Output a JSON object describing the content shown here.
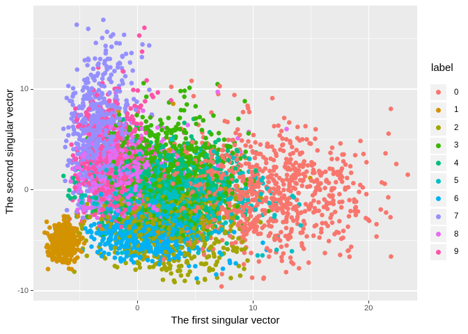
{
  "figure": {
    "background": "#FFFFFF",
    "panel_background": "#EBEBEB",
    "grid_major_color": "#FFFFFF",
    "grid_minor_color": "#FFFFFF",
    "tick_mark_color": "#333333",
    "tick_label_color": "#4D4D4D"
  },
  "legend": {
    "title": "label",
    "position": "right",
    "key_fill": "#F2F2F2",
    "items": [
      {
        "label": "0",
        "color": "#F8766D"
      },
      {
        "label": "1",
        "color": "#D39200"
      },
      {
        "label": "2",
        "color": "#A3A500"
      },
      {
        "label": "3",
        "color": "#39B600"
      },
      {
        "label": "4",
        "color": "#00BF7D"
      },
      {
        "label": "5",
        "color": "#00BFC4"
      },
      {
        "label": "6",
        "color": "#00B0F6"
      },
      {
        "label": "7",
        "color": "#9590FF"
      },
      {
        "label": "8",
        "color": "#E76BF3"
      },
      {
        "label": "9",
        "color": "#FF52A8"
      }
    ]
  },
  "chart_data": {
    "type": "scatter",
    "title": "",
    "xlabel": "The first singular vector",
    "ylabel": "The second singular vector",
    "xlim": [
      -9.0,
      24.2
    ],
    "ylim": [
      -10.97,
      18.28
    ],
    "grid": true,
    "legend_title": "label",
    "legend_position": "right",
    "point_radius_px": 3.3,
    "seed": 1337,
    "x_ticks": {
      "majors": [
        {
          "v": 0,
          "label": "0"
        },
        {
          "v": 10,
          "label": "10"
        },
        {
          "v": 20,
          "label": "20"
        }
      ],
      "minors": [
        -5,
        5,
        15
      ]
    },
    "y_ticks": {
      "majors": [
        {
          "v": 10,
          "label": "10"
        },
        {
          "v": 0,
          "label": "0"
        },
        {
          "v": -10,
          "label": "-10"
        }
      ],
      "minors": [
        15,
        5,
        -5
      ]
    },
    "series": [
      {
        "name": "0",
        "color": "#F8766D",
        "clusters": [
          {
            "n": 850,
            "cx": 10.8,
            "cy": -0.4,
            "sx": 4.6,
            "sy": 2.9,
            "xmin": -1.5,
            "xmax": 23.6,
            "ymin": -9.0,
            "ymax": 9.5
          },
          {
            "n": 12,
            "cx": 8.0,
            "cy": 9.5,
            "sx": 3.5,
            "sy": 1.6,
            "ymax": 12.6
          },
          {
            "n": 6,
            "cx": 12.0,
            "cy": -8.2,
            "sx": 2.4,
            "sy": 0.9,
            "ymin": -10.0
          }
        ]
      },
      {
        "name": "1",
        "color": "#D39200",
        "clusters": [
          {
            "n": 380,
            "cx": -6.3,
            "cy": -5.1,
            "sx": 0.7,
            "sy": 1.05,
            "xmin": -8.3,
            "xmax": -4.2,
            "ymin": -7.9,
            "ymax": -2.6
          },
          {
            "n": 25,
            "cx": 1.5,
            "cy": 0.0,
            "sx": 3.5,
            "sy": 3.5
          }
        ]
      },
      {
        "name": "2",
        "color": "#A3A500",
        "clusters": [
          {
            "n": 600,
            "cx": 2.3,
            "cy": -3.6,
            "sx": 3.3,
            "sy": 2.0,
            "xmin": -5.5,
            "xmax": 12.0,
            "ymin": -8.2,
            "ymax": 1.5
          },
          {
            "n": 30,
            "cx": 4.0,
            "cy": -8.0,
            "sx": 2.5,
            "sy": 1.0,
            "ymin": -9.9
          }
        ]
      },
      {
        "name": "3",
        "color": "#39B600",
        "clusters": [
          {
            "n": 750,
            "cx": 2.6,
            "cy": 1.8,
            "sx": 3.0,
            "sy": 2.9,
            "xmin": -4.5,
            "xmax": 14.0,
            "ymin": -5.0,
            "ymax": 12.5
          }
        ]
      },
      {
        "name": "4",
        "color": "#00BF7D",
        "clusters": [
          {
            "n": 580,
            "cx": 2.2,
            "cy": 0.6,
            "sx": 3.3,
            "sy": 2.3,
            "xmin": -6.5,
            "xmax": 13.5,
            "ymin": -6.0,
            "ymax": 11.0
          }
        ]
      },
      {
        "name": "5",
        "color": "#00BFC4",
        "clusters": [
          {
            "n": 580,
            "cx": 3.2,
            "cy": -0.6,
            "sx": 3.4,
            "sy": 2.1,
            "xmin": -5.5,
            "xmax": 13.0,
            "ymin": -7.0,
            "ymax": 9.0
          },
          {
            "n": 12,
            "cx": 12.0,
            "cy": -5.0,
            "sx": 2.0,
            "sy": 2.5,
            "xmax": 16.0,
            "ymin": -9.2
          }
        ]
      },
      {
        "name": "6",
        "color": "#00B0F6",
        "clusters": [
          {
            "n": 500,
            "cx": 0.6,
            "cy": -4.3,
            "sx": 2.4,
            "sy": 1.3,
            "xmin": -5.2,
            "xmax": 7.5,
            "ymin": -7.6,
            "ymax": -0.3
          },
          {
            "n": 14,
            "cx": 8.0,
            "cy": -6.0,
            "sx": 2.2,
            "sy": 1.5,
            "xmax": 12.0,
            "ymin": -9.0
          }
        ]
      },
      {
        "name": "7",
        "color": "#9590FF",
        "clusters": [
          {
            "n": 650,
            "cx": -3.3,
            "cy": 4.6,
            "sx": 1.35,
            "sy": 3.4,
            "xmin": -6.4,
            "xmax": 1.5,
            "ymin": -2.8,
            "ymax": 13.0
          },
          {
            "n": 60,
            "cx": -2.6,
            "cy": 12.5,
            "sx": 1.8,
            "sy": 2.5,
            "xmin": -6.0,
            "xmax": 1.5,
            "ymax": 17.3
          }
        ]
      },
      {
        "name": "8",
        "color": "#E76BF3",
        "clusters": [
          {
            "n": 520,
            "cx": -1.6,
            "cy": 1.6,
            "sx": 1.9,
            "sy": 2.3,
            "xmin": -5.8,
            "ymin": -3.5,
            "ymax": 8.0
          },
          {
            "n": 10,
            "cx": 8.0,
            "cy": 5.0,
            "sx": 3.0,
            "sy": 2.5,
            "xmax": 13.0,
            "ymax": 15.0
          }
        ]
      },
      {
        "name": "9",
        "color": "#FF52A8",
        "clusters": [
          {
            "n": 520,
            "cx": -2.4,
            "cy": 2.4,
            "sx": 1.7,
            "sy": 3.0,
            "xmin": -6.0,
            "xmax": 4.0,
            "ymin": -4.0,
            "ymax": 11.0
          },
          {
            "n": 25,
            "cx": -0.5,
            "cy": 9.0,
            "sx": 2.2,
            "sy": 3.5,
            "xmin": -5.0,
            "xmax": 4.5,
            "ymax": 16.9
          }
        ]
      }
    ]
  }
}
